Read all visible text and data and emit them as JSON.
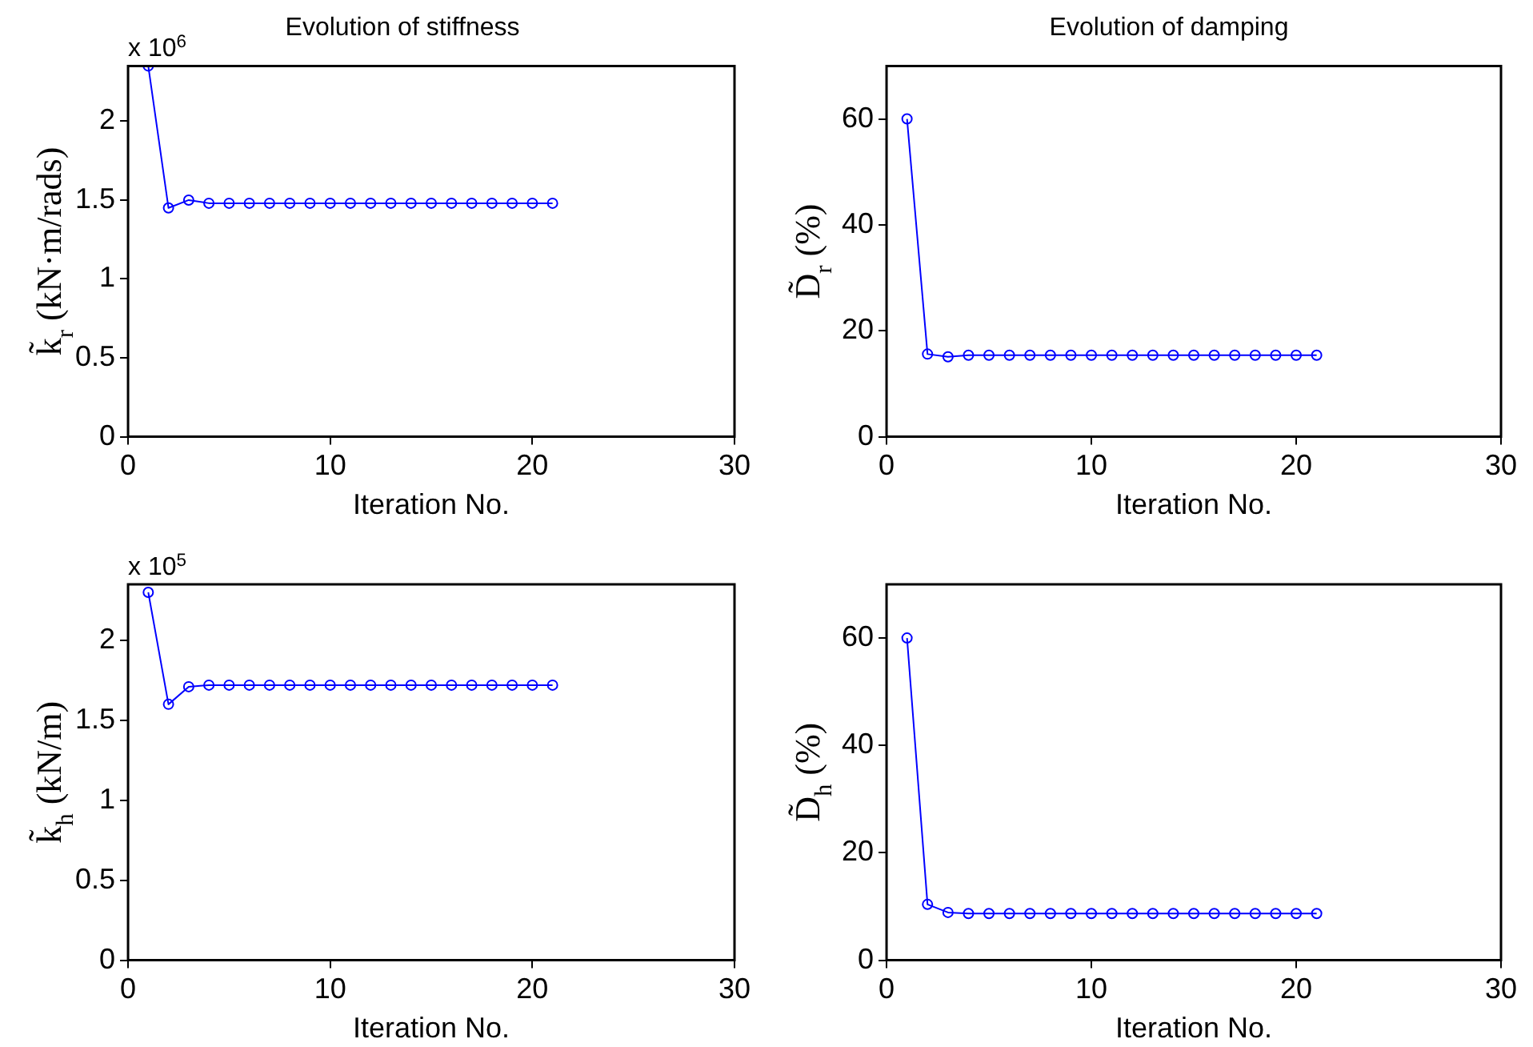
{
  "chart_data": [
    {
      "type": "line",
      "title": "Evolution of stiffness",
      "xlabel": "Iteration No.",
      "ylabel": "k̃$_{r}$ (kN·m/rads)",
      "annotations": [
        "x 10$^{6}$"
      ],
      "x": [
        1,
        2,
        3,
        4,
        5,
        6,
        7,
        8,
        9,
        10,
        11,
        12,
        13,
        14,
        15,
        16,
        17,
        18,
        19,
        20,
        21
      ],
      "series": [
        {
          "color": "#0000ff",
          "values": [
            2.35,
            1.45,
            1.5,
            1.48,
            1.48,
            1.48,
            1.48,
            1.48,
            1.48,
            1.48,
            1.48,
            1.48,
            1.48,
            1.48,
            1.48,
            1.48,
            1.48,
            1.48,
            1.48,
            1.48,
            1.48
          ]
        }
      ],
      "xlim": [
        0,
        30
      ],
      "xticks": [
        0,
        10,
        20,
        30
      ],
      "ylim": [
        0,
        2.35
      ],
      "yticks": [
        0,
        0.5,
        1,
        1.5,
        2
      ],
      "grid": false,
      "legend": false,
      "marker": "circle",
      "line_style": "solid"
    },
    {
      "type": "line",
      "title": "Evolution of damping",
      "xlabel": "Iteration No.",
      "ylabel": "D̃$_{r}$ (%)",
      "x": [
        1,
        2,
        3,
        4,
        5,
        6,
        7,
        8,
        9,
        10,
        11,
        12,
        13,
        14,
        15,
        16,
        17,
        18,
        19,
        20,
        21
      ],
      "series": [
        {
          "color": "#0000ff",
          "values": [
            60,
            15.6,
            15.1,
            15.4,
            15.4,
            15.4,
            15.4,
            15.4,
            15.4,
            15.4,
            15.4,
            15.4,
            15.4,
            15.4,
            15.4,
            15.4,
            15.4,
            15.4,
            15.4,
            15.4,
            15.4
          ]
        }
      ],
      "xlim": [
        0,
        30
      ],
      "xticks": [
        0,
        10,
        20,
        30
      ],
      "ylim": [
        0,
        70
      ],
      "yticks": [
        0,
        20,
        40,
        60
      ],
      "grid": false,
      "legend": false,
      "marker": "circle",
      "line_style": "solid"
    },
    {
      "type": "line",
      "xlabel": "Iteration No.",
      "ylabel": "k̃$_{h}$ (kN/m)",
      "annotations": [
        "x 10$^{5}$"
      ],
      "x": [
        1,
        2,
        3,
        4,
        5,
        6,
        7,
        8,
        9,
        10,
        11,
        12,
        13,
        14,
        15,
        16,
        17,
        18,
        19,
        20,
        21
      ],
      "series": [
        {
          "color": "#0000ff",
          "values": [
            2.3,
            1.6,
            1.71,
            1.72,
            1.72,
            1.72,
            1.72,
            1.72,
            1.72,
            1.72,
            1.72,
            1.72,
            1.72,
            1.72,
            1.72,
            1.72,
            1.72,
            1.72,
            1.72,
            1.72,
            1.72
          ]
        }
      ],
      "xlim": [
        0,
        30
      ],
      "xticks": [
        0,
        10,
        20,
        30
      ],
      "ylim": [
        0,
        2.35
      ],
      "yticks": [
        0,
        0.5,
        1,
        1.5,
        2
      ],
      "grid": false,
      "legend": false,
      "marker": "circle",
      "line_style": "solid"
    },
    {
      "type": "line",
      "xlabel": "Iteration No.",
      "ylabel": "D̃$_{h}$ (%)",
      "x": [
        1,
        2,
        3,
        4,
        5,
        6,
        7,
        8,
        9,
        10,
        11,
        12,
        13,
        14,
        15,
        16,
        17,
        18,
        19,
        20,
        21
      ],
      "series": [
        {
          "color": "#0000ff",
          "values": [
            60,
            10.4,
            8.9,
            8.7,
            8.7,
            8.7,
            8.7,
            8.7,
            8.7,
            8.7,
            8.7,
            8.7,
            8.7,
            8.7,
            8.7,
            8.7,
            8.7,
            8.7,
            8.7,
            8.7,
            8.7
          ]
        }
      ],
      "xlim": [
        0,
        30
      ],
      "xticks": [
        0,
        10,
        20,
        30
      ],
      "ylim": [
        0,
        70
      ],
      "yticks": [
        0,
        20,
        40,
        60
      ],
      "grid": false,
      "legend": false,
      "marker": "circle",
      "line_style": "solid"
    }
  ]
}
